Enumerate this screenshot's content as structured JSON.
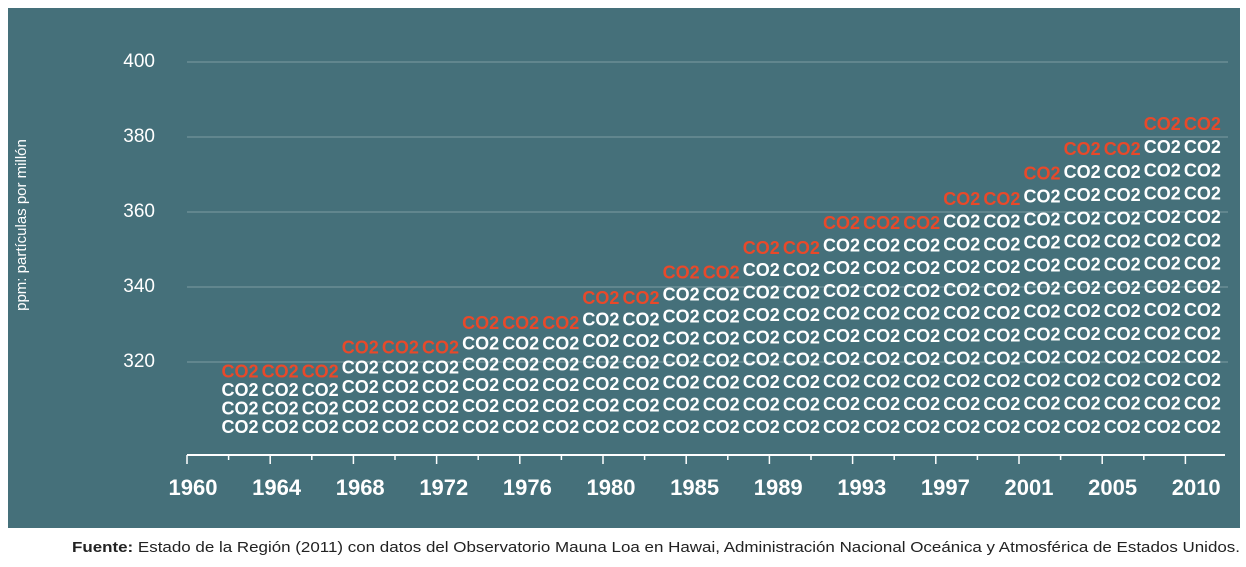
{
  "chart_data": {
    "type": "pictogram",
    "y_label": "ppm: partículas por millón",
    "unit_label": "CO2",
    "categories": [
      "1960",
      null,
      "1964",
      null,
      "1968",
      null,
      "1972",
      null,
      "1976",
      null,
      "1980",
      null,
      "1985",
      null,
      "1989",
      null,
      "1993",
      null,
      "1997",
      null,
      "2001",
      null,
      "2005",
      null,
      "2010"
    ],
    "values": [
      317.1,
      317.1,
      317.1,
      323.5,
      323.5,
      323.5,
      330.1,
      330.1,
      330.1,
      336.8,
      336.8,
      343.5,
      343.5,
      350.1,
      350.1,
      356.8,
      356.8,
      356.8,
      363.2,
      363.2,
      369.9,
      376.5,
      376.5,
      383.2,
      383.2
    ],
    "color": "#ffffff",
    "top_color": "#e8492a",
    "ylim": [
      296,
      400
    ],
    "yticks": [
      320,
      340,
      360,
      380,
      400
    ],
    "grid": true,
    "source_label": "Fuente:",
    "source": "Estado de la Región (2011) con datos del Observatorio Mauna Loa en Hawai, Administración Nacional Oceánica y Atmosférica de Estados Unidos."
  }
}
